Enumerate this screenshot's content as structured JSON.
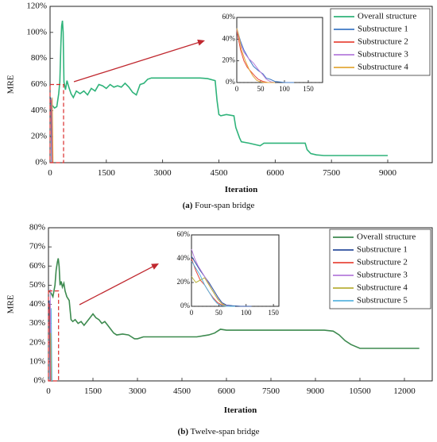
{
  "chart_data": [
    {
      "type": "line",
      "caption_label": "(a)",
      "caption_text": "Four-span bridge",
      "xlabel": "Iteration",
      "ylabel": "MRE",
      "xlim": [
        0,
        10000
      ],
      "ylim": [
        0,
        120
      ],
      "xticks": [
        "0",
        "1500",
        "3000",
        "4500",
        "6000",
        "7500",
        "9000"
      ],
      "yticks": [
        "0%",
        "20%",
        "40%",
        "60%",
        "80%",
        "100%",
        "120%"
      ],
      "zero_line": "dashed",
      "legend_placement": "top-right",
      "series": [
        {
          "name": "Overall structure",
          "color": "#2fb37a",
          "points": [
            [
              0,
              45
            ],
            [
              60,
              44
            ],
            [
              120,
              42
            ],
            [
              180,
              43
            ],
            [
              230,
              53
            ],
            [
              260,
              62
            ],
            [
              290,
              92
            ],
            [
              310,
              105
            ],
            [
              330,
              109
            ],
            [
              350,
              100
            ],
            [
              370,
              62
            ],
            [
              410,
              56
            ],
            [
              450,
              63
            ],
            [
              500,
              58
            ],
            [
              560,
              53
            ],
            [
              620,
              50
            ],
            [
              700,
              55
            ],
            [
              800,
              53
            ],
            [
              900,
              55
            ],
            [
              1000,
              52
            ],
            [
              1100,
              57
            ],
            [
              1200,
              55
            ],
            [
              1300,
              60
            ],
            [
              1400,
              59
            ],
            [
              1500,
              57
            ],
            [
              1600,
              60
            ],
            [
              1700,
              58
            ],
            [
              1800,
              59
            ],
            [
              1900,
              58
            ],
            [
              2000,
              61
            ],
            [
              2100,
              58
            ],
            [
              2200,
              54
            ],
            [
              2300,
              52
            ],
            [
              2400,
              60
            ],
            [
              2500,
              61
            ],
            [
              2600,
              64
            ],
            [
              2700,
              65
            ],
            [
              3000,
              65
            ],
            [
              3300,
              65
            ],
            [
              3600,
              65
            ],
            [
              4000,
              65
            ],
            [
              4200,
              64.5
            ],
            [
              4400,
              63
            ],
            [
              4450,
              48
            ],
            [
              4500,
              37
            ],
            [
              4550,
              36
            ],
            [
              4700,
              37
            ],
            [
              4900,
              36
            ],
            [
              4950,
              27
            ],
            [
              5050,
              19
            ],
            [
              5100,
              16
            ],
            [
              5300,
              15
            ],
            [
              5600,
              13
            ],
            [
              5700,
              15
            ],
            [
              5900,
              15
            ],
            [
              6300,
              15
            ],
            [
              6800,
              15
            ],
            [
              6850,
              10
            ],
            [
              6950,
              7
            ],
            [
              7100,
              6
            ],
            [
              7300,
              5.5
            ],
            [
              7700,
              5.5
            ],
            [
              8200,
              5.5
            ],
            [
              9000,
              5.5
            ]
          ]
        }
      ],
      "inset": {
        "xlim": [
          0,
          180
        ],
        "ylim": [
          0,
          60
        ],
        "xticks": [
          "0",
          "50",
          "100",
          "150"
        ],
        "yticks": [
          "0%",
          "20%",
          "40%",
          "60%"
        ],
        "series": [
          {
            "name": "Substructure 1",
            "color": "#3d78c4",
            "points": [
              [
                0,
                50
              ],
              [
                8,
                38
              ],
              [
                15,
                30
              ],
              [
                25,
                22
              ],
              [
                35,
                15
              ],
              [
                45,
                11
              ],
              [
                55,
                8
              ],
              [
                62,
                4
              ],
              [
                70,
                3
              ],
              [
                80,
                1
              ],
              [
                90,
                0.5
              ],
              [
                100,
                0
              ],
              [
                120,
                0
              ]
            ]
          },
          {
            "name": "Substructure 2",
            "color": "#e8483c",
            "points": [
              [
                0,
                48
              ],
              [
                8,
                30
              ],
              [
                15,
                20
              ],
              [
                22,
                14
              ],
              [
                30,
                10
              ],
              [
                38,
                6
              ],
              [
                45,
                3
              ],
              [
                55,
                1
              ],
              [
                65,
                0
              ],
              [
                80,
                0
              ]
            ]
          },
          {
            "name": "Substructure 3",
            "color": "#b57cdb",
            "points": [
              [
                0,
                49
              ],
              [
                8,
                36
              ],
              [
                15,
                28
              ],
              [
                25,
                22
              ],
              [
                35,
                18
              ],
              [
                45,
                12
              ],
              [
                55,
                7
              ],
              [
                62,
                3
              ],
              [
                72,
                0.5
              ],
              [
                80,
                0
              ]
            ]
          },
          {
            "name": "Substructure 4",
            "color": "#e2a83a",
            "points": [
              [
                0,
                50
              ],
              [
                5,
                42
              ],
              [
                10,
                30
              ],
              [
                18,
                20
              ],
              [
                26,
                12
              ],
              [
                34,
                6
              ],
              [
                42,
                2
              ],
              [
                50,
                0.5
              ],
              [
                58,
                0
              ],
              [
                80,
                0
              ]
            ]
          }
        ]
      }
    },
    {
      "type": "line",
      "caption_label": "(b)",
      "caption_text": "Twelve-span bridge",
      "xlabel": "Iteration",
      "ylabel": "MRE",
      "xlim": [
        0,
        13000
      ],
      "ylim": [
        0,
        80
      ],
      "xticks": [
        "0",
        "1500",
        "3000",
        "4500",
        "6000",
        "7500",
        "9000",
        "10500",
        "12000"
      ],
      "yticks": [
        "0%",
        "10%",
        "20%",
        "30%",
        "40%",
        "50%",
        "60%",
        "70%",
        "80%"
      ],
      "zero_line": "dashed",
      "legend_placement": "top-right",
      "series": [
        {
          "name": "Overall structure",
          "color": "#3d8a4f",
          "points": [
            [
              0,
              47
            ],
            [
              80,
              46
            ],
            [
              150,
              44
            ],
            [
              220,
              50
            ],
            [
              260,
              58
            ],
            [
              300,
              62
            ],
            [
              330,
              64
            ],
            [
              360,
              60
            ],
            [
              390,
              50
            ],
            [
              430,
              52
            ],
            [
              470,
              49
            ],
            [
              520,
              51
            ],
            [
              560,
              47
            ],
            [
              620,
              44
            ],
            [
              700,
              42
            ],
            [
              760,
              32
            ],
            [
              820,
              31
            ],
            [
              900,
              32
            ],
            [
              1000,
              30
            ],
            [
              1100,
              31
            ],
            [
              1200,
              29
            ],
            [
              1300,
              31
            ],
            [
              1400,
              33
            ],
            [
              1500,
              35
            ],
            [
              1600,
              33
            ],
            [
              1700,
              32
            ],
            [
              1800,
              30
            ],
            [
              1900,
              31
            ],
            [
              2000,
              29
            ],
            [
              2100,
              27
            ],
            [
              2200,
              25
            ],
            [
              2300,
              24
            ],
            [
              2500,
              24.5
            ],
            [
              2700,
              24
            ],
            [
              2800,
              23
            ],
            [
              2900,
              22
            ],
            [
              3000,
              22
            ],
            [
              3200,
              23
            ],
            [
              3600,
              23
            ],
            [
              4000,
              23
            ],
            [
              4500,
              23
            ],
            [
              5000,
              23
            ],
            [
              5400,
              24
            ],
            [
              5600,
              25
            ],
            [
              5800,
              27
            ],
            [
              6000,
              26.5
            ],
            [
              6500,
              26.5
            ],
            [
              7500,
              26.5
            ],
            [
              8500,
              26.5
            ],
            [
              9300,
              26.5
            ],
            [
              9600,
              26
            ],
            [
              9800,
              24
            ],
            [
              10000,
              21
            ],
            [
              10200,
              19
            ],
            [
              10500,
              17
            ],
            [
              11000,
              17
            ],
            [
              11700,
              17
            ],
            [
              12500,
              17
            ]
          ]
        }
      ],
      "inset": {
        "xlim": [
          0,
          160
        ],
        "ylim": [
          0,
          60
        ],
        "xticks": [
          "0",
          "50",
          "100",
          "150"
        ],
        "yticks": [
          "0%",
          "20%",
          "40%",
          "60%"
        ],
        "series": [
          {
            "name": "Substructure 1",
            "color": "#2b4f9e",
            "points": [
              [
                0,
                42
              ],
              [
                8,
                36
              ],
              [
                16,
                30
              ],
              [
                24,
                25
              ],
              [
                32,
                20
              ],
              [
                40,
                14
              ],
              [
                48,
                8
              ],
              [
                56,
                3
              ],
              [
                64,
                1
              ],
              [
                75,
                0.5
              ],
              [
                90,
                0
              ],
              [
                110,
                0
              ]
            ]
          },
          {
            "name": "Substructure 2",
            "color": "#e8483c",
            "points": [
              [
                0,
                40
              ],
              [
                8,
                30
              ],
              [
                16,
                22
              ],
              [
                24,
                18
              ],
              [
                32,
                12
              ],
              [
                40,
                7
              ],
              [
                48,
                3
              ],
              [
                56,
                1
              ],
              [
                64,
                0
              ],
              [
                80,
                0
              ]
            ]
          },
          {
            "name": "Substructure 3",
            "color": "#b57cdb",
            "points": [
              [
                0,
                48
              ],
              [
                6,
                40
              ],
              [
                12,
                34
              ],
              [
                20,
                28
              ],
              [
                28,
                22
              ],
              [
                36,
                15
              ],
              [
                44,
                9
              ],
              [
                52,
                4
              ],
              [
                60,
                1
              ],
              [
                70,
                0
              ],
              [
                80,
                0
              ]
            ]
          },
          {
            "name": "Substructure 4",
            "color": "#b8b038",
            "points": [
              [
                0,
                25
              ],
              [
                8,
                20
              ],
              [
                16,
                22
              ],
              [
                24,
                24
              ],
              [
                32,
                18
              ],
              [
                40,
                12
              ],
              [
                48,
                6
              ],
              [
                56,
                2
              ],
              [
                64,
                0
              ],
              [
                80,
                0
              ]
            ]
          },
          {
            "name": "Substructure 5",
            "color": "#5ab4df",
            "points": [
              [
                0,
                38
              ],
              [
                8,
                32
              ],
              [
                16,
                26
              ],
              [
                24,
                18
              ],
              [
                32,
                12
              ],
              [
                40,
                6
              ],
              [
                48,
                2
              ],
              [
                56,
                0.5
              ],
              [
                64,
                0
              ],
              [
                80,
                0
              ]
            ]
          }
        ]
      }
    }
  ]
}
